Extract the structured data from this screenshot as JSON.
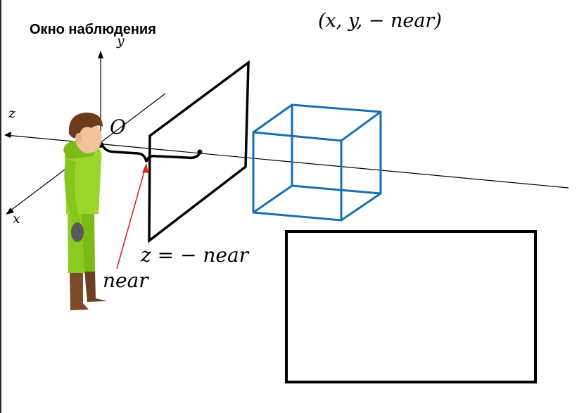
{
  "title": "Окно наблюдения",
  "labels": {
    "point": "(x, y, − near)",
    "plane": "z = − near",
    "near": "near",
    "origin": "O",
    "axis_y": "y",
    "axis_z": "z",
    "axis_x": "x"
  },
  "colors": {
    "cube": "#1a6fb3",
    "near_arrow": "#d8281f",
    "lines": "#000000"
  }
}
